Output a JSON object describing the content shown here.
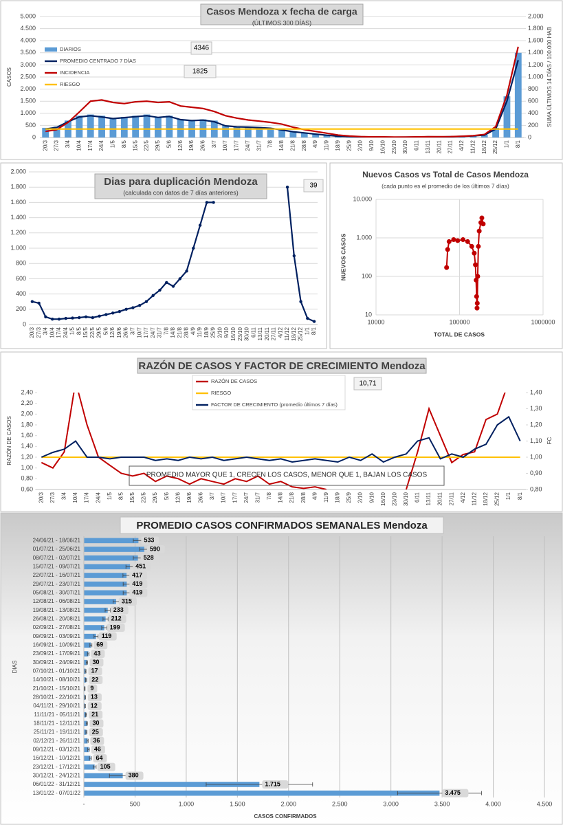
{
  "chart_data": [
    {
      "type": "combo",
      "title": "Casos Mendoza x fecha de carga",
      "subtitle": "(ÚLTIMOS 300 DÍAS)",
      "y_label": "CASOS",
      "y2_label": "SUMA ÚLTIMOS 14 DÍAS / 100.000 HAB",
      "categories": [
        "20/3",
        "27/3",
        "3/4",
        "10/4",
        "17/4",
        "24/4",
        "1/5",
        "8/5",
        "15/5",
        "22/5",
        "29/5",
        "5/6",
        "12/6",
        "19/6",
        "26/6",
        "3/7",
        "10/7",
        "17/7",
        "24/7",
        "31/7",
        "7/8",
        "14/8",
        "21/8",
        "28/8",
        "4/9",
        "11/9",
        "18/9",
        "25/9",
        "2/10",
        "9/10",
        "16/10",
        "23/10",
        "30/10",
        "6/11",
        "13/11",
        "20/11",
        "27/11",
        "4/12",
        "11/12",
        "18/12",
        "25/12",
        "1/1",
        "8/1"
      ],
      "series": [
        {
          "name": "DIARIOS",
          "type": "bar",
          "color": "#5b9bd5",
          "values": [
            400,
            450,
            700,
            900,
            950,
            900,
            800,
            850,
            900,
            950,
            850,
            900,
            750,
            700,
            750,
            700,
            500,
            450,
            450,
            420,
            400,
            320,
            250,
            200,
            150,
            100,
            60,
            40,
            30,
            25,
            15,
            12,
            15,
            20,
            30,
            25,
            35,
            50,
            70,
            110,
            400,
            1700,
            3500
          ]
        },
        {
          "name": "PROMEDIO CENTRADO 7 DÍAS",
          "type": "line",
          "color": "#002060",
          "values": [
            350,
            420,
            650,
            850,
            900,
            850,
            780,
            820,
            860,
            900,
            830,
            870,
            740,
            700,
            720,
            650,
            480,
            440,
            430,
            410,
            380,
            310,
            240,
            190,
            140,
            95,
            55,
            38,
            28,
            22,
            14,
            12,
            14,
            18,
            28,
            24,
            32,
            45,
            65,
            100,
            350,
            1500,
            3200
          ]
        },
        {
          "name": "INCIDENCIA",
          "type": "line",
          "color": "#c00000",
          "axis": "y2",
          "values": [
            100,
            130,
            250,
            420,
            600,
            620,
            580,
            560,
            590,
            600,
            580,
            590,
            520,
            500,
            480,
            430,
            360,
            320,
            290,
            270,
            250,
            220,
            170,
            130,
            100,
            70,
            40,
            25,
            15,
            10,
            10,
            8,
            8,
            10,
            12,
            14,
            15,
            20,
            30,
            50,
            180,
            700,
            1500
          ]
        },
        {
          "name": "RIESGO",
          "type": "line",
          "color": "#ffc000",
          "axis": "y2",
          "values": [
            140,
            140,
            140,
            140,
            140,
            140,
            140,
            140,
            140,
            140,
            140,
            140,
            140,
            140,
            140,
            140,
            140,
            140,
            140,
            140,
            140,
            140,
            140,
            140,
            140,
            140,
            140,
            140,
            140,
            140,
            140,
            140,
            140,
            140,
            140,
            140,
            140,
            140,
            140,
            140,
            140,
            140,
            140
          ]
        }
      ],
      "ylim": [
        0,
        5000
      ],
      "yticks": [
        0,
        500,
        {
          "value": 1000,
          "label": "1.000"
        },
        {
          "value": 1500,
          "label": "1.500"
        },
        {
          "value": 2000,
          "label": "2.000"
        },
        {
          "value": 2500,
          "label": "2.500"
        },
        {
          "value": 3000,
          "label": "3.000"
        },
        {
          "value": 3500,
          "label": "3.500"
        },
        {
          "value": 4000,
          "label": "4.000"
        },
        {
          "value": 4500,
          "label": "4.500"
        },
        {
          "value": 5000,
          "label": "5.000"
        }
      ],
      "y2lim": [
        0,
        2000
      ],
      "y2ticks": [
        0,
        200,
        400,
        600,
        800,
        {
          "value": 1000,
          "label": "1.000"
        },
        {
          "value": 1200,
          "label": "1.200"
        },
        {
          "value": 1400,
          "label": "1.400"
        },
        {
          "value": 1600,
          "label": "1.600"
        },
        {
          "value": 1800,
          "label": "1.800"
        },
        {
          "value": 2000,
          "label": "2.000"
        }
      ],
      "annotations": [
        4346,
        1825
      ],
      "legend": "top-left"
    },
    {
      "type": "line",
      "title": "Dias para duplicación Mendoza",
      "subtitle": "(calculada con datos de 7 días anteriores)",
      "color": "#002060",
      "categories": [
        "20/3",
        "27/3",
        "3/4",
        "10/4",
        "17/4",
        "24/4",
        "1/5",
        "8/5",
        "15/5",
        "22/5",
        "29/5",
        "5/6",
        "12/6",
        "19/6",
        "26/6",
        "3/7",
        "10/7",
        "17/7",
        "24/7",
        "31/7",
        "7/8",
        "14/8",
        "21/8",
        "28/8",
        "4/9",
        "11/9",
        "18/9",
        "25/9",
        "2/10",
        "9/10",
        "16/10",
        "23/10",
        "30/10",
        "6/11",
        "13/11",
        "20/11",
        "27/11",
        "4/12",
        "11/12",
        "18/12",
        "25/12",
        "1/1",
        "8/1"
      ],
      "values": [
        300,
        280,
        100,
        70,
        70,
        80,
        85,
        90,
        100,
        90,
        110,
        130,
        150,
        170,
        200,
        220,
        250,
        300,
        380,
        450,
        550,
        500,
        600,
        700,
        1000,
        1300,
        1600,
        1600,
        null,
        null,
        null,
        null,
        null,
        null,
        null,
        null,
        null,
        null,
        1800,
        900,
        300,
        80,
        40
      ],
      "ylim": [
        0,
        2000
      ],
      "yticks": [
        0,
        200,
        400,
        600,
        800,
        {
          "value": 1000,
          "label": "1.000"
        },
        {
          "value": 1200,
          "label": "1.200"
        },
        {
          "value": 1400,
          "label": "1.400"
        },
        {
          "value": 1600,
          "label": "1.600"
        },
        {
          "value": 1800,
          "label": "1.800"
        },
        {
          "value": 2000,
          "label": "2.000"
        }
      ],
      "annotations": [
        39
      ]
    },
    {
      "type": "scatter",
      "title": "Nuevos Casos vs Total de Casos Mendoza",
      "subtitle": "(cada punto es el promedio de los últimos 7 días)",
      "x_label": "TOTAL DE CASOS",
      "y_label": "NUEVOS CASOS",
      "color": "#c00000",
      "log_x": true,
      "log_y": true,
      "x": [
        70000,
        72000,
        75000,
        85000,
        95000,
        110000,
        125000,
        140000,
        150000,
        155000,
        158000,
        160000,
        162000,
        163000,
        165000,
        168000,
        172000,
        180000,
        185000,
        192000
      ],
      "values": [
        170,
        500,
        800,
        900,
        850,
        900,
        800,
        600,
        400,
        200,
        80,
        30,
        15,
        20,
        100,
        600,
        1500,
        2500,
        3300,
        2300
      ],
      "xlim": [
        10000,
        1000000
      ],
      "xticks": [
        10000,
        100000,
        1000000
      ],
      "ylim": [
        10,
        10000
      ],
      "yticks": [
        10,
        100,
        {
          "value": 1000,
          "label": "1.000"
        },
        {
          "value": 10000,
          "label": "10.000"
        }
      ],
      "grid": true
    },
    {
      "type": "line",
      "title": "RAZÓN DE CASOS Y FACTOR DE CRECIMIENTO Mendoza",
      "y_label": "RAZÓN DE CASOS",
      "y2_label": "FC",
      "categories": [
        "20/3",
        "27/3",
        "3/4",
        "10/4",
        "17/4",
        "24/4",
        "1/5",
        "8/5",
        "15/5",
        "22/5",
        "29/5",
        "5/6",
        "12/6",
        "19/6",
        "26/6",
        "3/7",
        "10/7",
        "17/7",
        "24/7",
        "31/7",
        "7/8",
        "14/8",
        "21/8",
        "28/8",
        "4/9",
        "11/9",
        "18/9",
        "25/9",
        "2/10",
        "9/10",
        "16/10",
        "23/10",
        "30/10",
        "6/11",
        "13/11",
        "20/11",
        "27/11",
        "4/12",
        "11/12",
        "18/12",
        "25/12",
        "1/1",
        "8/1"
      ],
      "series": [
        {
          "name": "RAZÓN DE CASOS",
          "color": "#c00000",
          "values": [
            1.1,
            1.0,
            1.3,
            2.6,
            1.8,
            1.2,
            1.05,
            0.9,
            0.85,
            0.9,
            0.75,
            0.85,
            0.8,
            0.7,
            0.8,
            0.75,
            0.7,
            0.8,
            0.75,
            0.85,
            0.7,
            0.75,
            0.65,
            0.62,
            0.65,
            0.6,
            null,
            null,
            null,
            null,
            null,
            null,
            0.6,
            1.3,
            2.1,
            1.6,
            1.1,
            1.25,
            1.3,
            1.9,
            2.0,
            2.6,
            null
          ]
        },
        {
          "name": "RIESGO",
          "color": "#ffc000",
          "values": [
            1.2,
            1.2,
            1.2,
            1.2,
            1.2,
            1.2,
            1.2,
            1.2,
            1.2,
            1.2,
            1.2,
            1.2,
            1.2,
            1.2,
            1.2,
            1.2,
            1.2,
            1.2,
            1.2,
            1.2,
            1.2,
            1.2,
            1.2,
            1.2,
            1.2,
            1.2,
            1.2,
            1.2,
            1.2,
            1.2,
            1.2,
            1.2,
            1.2,
            1.2,
            1.2,
            1.2,
            1.2,
            1.2,
            1.2,
            1.2,
            1.2,
            1.2,
            1.2
          ]
        },
        {
          "name": "FACTOR DE CRECIMIENTO (promedio últimos 7 días)",
          "color": "#002060",
          "axis": "y2",
          "values": [
            1.0,
            1.03,
            1.05,
            1.1,
            1.0,
            1.0,
            0.99,
            1.0,
            1.0,
            1.0,
            0.98,
            0.99,
            0.98,
            1.0,
            0.99,
            1.0,
            0.98,
            0.99,
            1.0,
            0.99,
            0.98,
            0.99,
            0.97,
            0.98,
            0.99,
            0.98,
            0.97,
            1.0,
            0.98,
            1.02,
            0.97,
            1.0,
            1.02,
            1.1,
            1.12,
            0.99,
            1.02,
            1.0,
            1.05,
            1.08,
            1.2,
            1.25,
            1.1
          ]
        }
      ],
      "ylim": [
        0.6,
        2.4
      ],
      "yticks": [
        {
          "value": 0.6,
          "label": "0,60"
        },
        {
          "value": 0.8,
          "label": "0,80"
        },
        {
          "value": 1.0,
          "label": "1,00"
        },
        {
          "value": 1.2,
          "label": "1,20"
        },
        {
          "value": 1.4,
          "label": "1,40"
        },
        {
          "value": 1.6,
          "label": "1,60"
        },
        {
          "value": 1.8,
          "label": "1,80"
        },
        {
          "value": 2.0,
          "label": "2,00"
        },
        {
          "value": 2.2,
          "label": "2,20"
        },
        {
          "value": 2.4,
          "label": "2,40"
        }
      ],
      "y2lim": [
        0.8,
        1.4
      ],
      "y2ticks": [
        {
          "value": 0.8,
          "label": "0,80"
        },
        {
          "value": 0.9,
          "label": "0,90"
        },
        {
          "value": 1.0,
          "label": "1,00"
        },
        {
          "value": 1.1,
          "label": "1,10"
        },
        {
          "value": 1.2,
          "label": "1,20"
        },
        {
          "value": 1.3,
          "label": "1,30"
        },
        {
          "value": 1.4,
          "label": "1,40"
        }
      ],
      "annotations": [
        {
          "value": 10.71,
          "label": "10,71"
        }
      ],
      "note": "PROMEDIO MAYOR QUE 1, CRECEN LOS CASOS, MENOR QUE 1, BAJAN LOS CASOS",
      "legend": "top-center"
    },
    {
      "type": "bar",
      "orientation": "horizontal",
      "title": "PROMEDIO CASOS CONFIRMADOS SEMANALES Mendoza",
      "x_label": "CASOS CONFIRMADOS",
      "y_label": "DIAS",
      "color": "#5b9bd5",
      "categories": [
        "24/06/21 - 18/06/21",
        "01/07/21 - 25/06/21",
        "08/07/21 - 02/07/21",
        "15/07/21 - 09/07/21",
        "22/07/21 - 16/07/21",
        "29/07/21 - 23/07/21",
        "05/08/21 - 30/07/21",
        "12/08/21 - 06/08/21",
        "19/08/21 - 13/08/21",
        "26/08/21 - 20/08/21",
        "02/09/21 - 27/08/21",
        "09/09/21 - 03/09/21",
        "16/09/21 - 10/09/21",
        "23/09/21 - 17/09/21",
        "30/09/21 - 24/09/21",
        "07/10/21 - 01/10/21",
        "14/10/21 - 08/10/21",
        "21/10/21 - 15/10/21",
        "28/10/21 - 22/10/21",
        "04/11/21 - 29/10/21",
        "11/11/21 - 05/11/21",
        "18/11/21 - 12/11/21",
        "25/11/21 - 19/11/21",
        "02/12/21 - 26/11/21",
        "09/12/21 - 03/12/21",
        "16/12/21 - 10/12/21",
        "23/12/21 - 17/12/21",
        "30/12/21 - 24/12/21",
        "06/01/22 - 31/12/21",
        "13/01/22 - 07/01/22"
      ],
      "values": [
        533,
        590,
        528,
        451,
        417,
        419,
        419,
        315,
        233,
        212,
        199,
        119,
        69,
        43,
        30,
        17,
        22,
        9,
        13,
        12,
        21,
        30,
        25,
        36,
        46,
        64,
        105,
        380,
        1715,
        3475
      ],
      "value_labels": [
        "533",
        "590",
        "528",
        "451",
        "417",
        "419",
        "419",
        "315",
        "233",
        "212",
        "199",
        "119",
        "69",
        "43",
        "30",
        "17",
        "22",
        "9",
        "13",
        "12",
        "21",
        "30",
        "25",
        "36",
        "46",
        "64",
        "105",
        "380",
        "1.715",
        "3.475"
      ],
      "errors": [
        50,
        45,
        45,
        40,
        35,
        35,
        35,
        30,
        25,
        25,
        25,
        20,
        10,
        8,
        6,
        4,
        5,
        3,
        3,
        3,
        4,
        5,
        5,
        6,
        8,
        10,
        15,
        130,
        520,
        410
      ],
      "xlim": [
        0,
        4500
      ],
      "xticks": [
        {
          "value": 0,
          "label": "-"
        },
        500,
        {
          "value": 1000,
          "label": "1.000"
        },
        {
          "value": 1500,
          "label": "1.500"
        },
        {
          "value": 2000,
          "label": "2.000"
        },
        {
          "value": 2500,
          "label": "2.500"
        },
        {
          "value": 3000,
          "label": "3.000"
        },
        {
          "value": 3500,
          "label": "3.500"
        },
        {
          "value": 4000,
          "label": "4.000"
        },
        {
          "value": 4500,
          "label": "4.500"
        }
      ],
      "grid": true
    }
  ]
}
